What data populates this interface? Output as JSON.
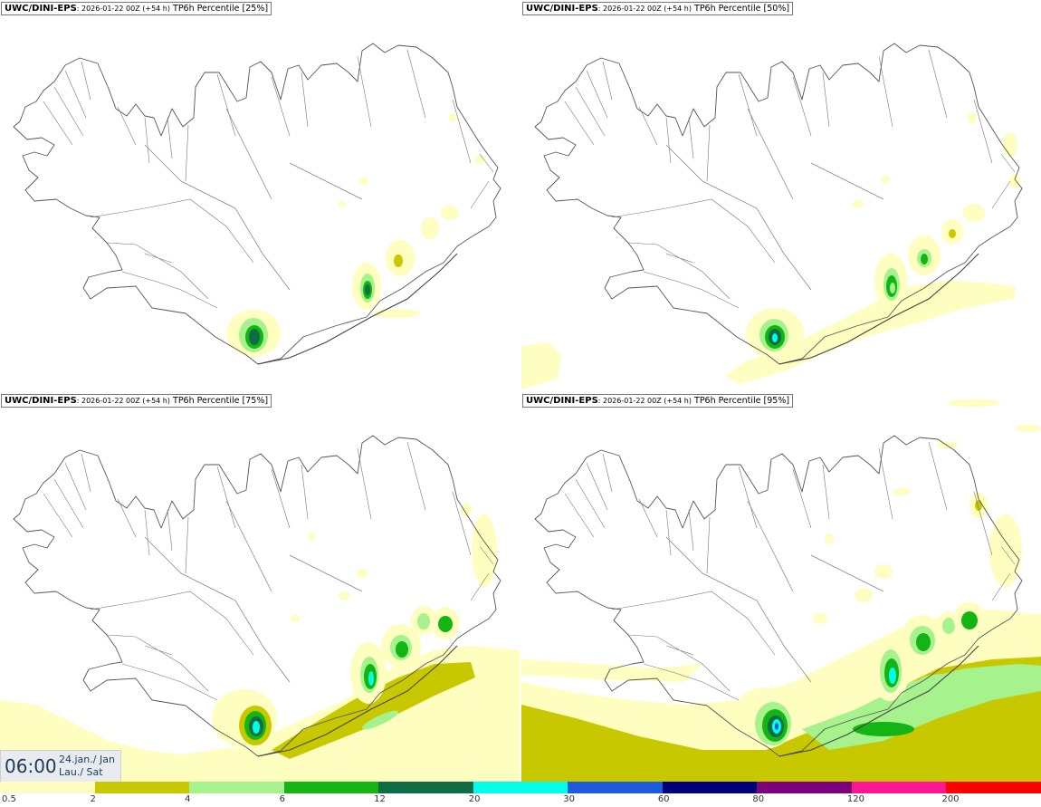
{
  "panels": [
    {
      "model": "UWC/DINI-EPS",
      "run": ": 2026-01-22 00Z (+54 h)",
      "field": "TP6h Percentile [25%]"
    },
    {
      "model": "UWC/DINI-EPS",
      "run": ": 2026-01-22 00Z (+54 h)",
      "field": "TP6h Percentile [50%]"
    },
    {
      "model": "UWC/DINI-EPS",
      "run": ": 2026-01-22 00Z (+54 h)",
      "field": "TP6h Percentile [75%]"
    },
    {
      "model": "UWC/DINI-EPS",
      "run": ": 2026-01-22 00Z (+54 h)",
      "field": "TP6h Percentile [95%]"
    }
  ],
  "valid_time": {
    "time": "06:00",
    "date_line1": "24.jan./ Jan",
    "date_line2": "Lau./ Sat"
  },
  "legend": {
    "colors": [
      "#fefec0",
      "#c8c800",
      "#a6f28c",
      "#14b414",
      "#0d6e46",
      "#00ffe8",
      "#1e5adc",
      "#00007a",
      "#7d007d",
      "#ff1493",
      "#ff0000"
    ],
    "labels": [
      "0.5",
      "2",
      "4",
      "6",
      "12",
      "20",
      "30",
      "60",
      "80",
      "120",
      "200"
    ]
  },
  "palette": {
    "yellow": "#fefec0",
    "olive": "#c8c800",
    "lightgreen": "#a6f28c",
    "green": "#14b414",
    "darkgreen": "#0d6e46",
    "cyan": "#00ffe8",
    "blue": "#1e5adc"
  }
}
